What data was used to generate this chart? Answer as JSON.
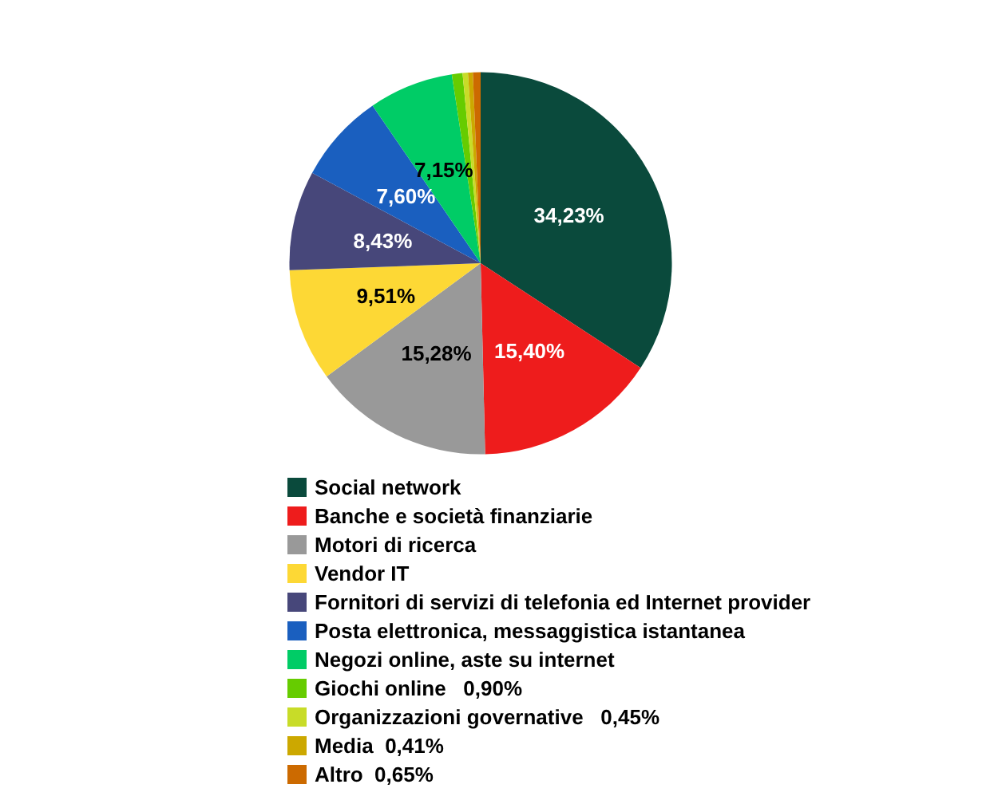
{
  "chart_data": {
    "type": "pie",
    "categories": [
      "Social network",
      "Banche e società finanziarie",
      "Motori di ricerca",
      "Vendor IT",
      "Fornitori di servizi di telefonia ed Internet provider",
      "Posta elettronica, messaggistica istantanea",
      "Negozi online, aste su internet",
      "Giochi online   0,90%",
      "Organizzazioni governative   0,45%",
      "Media  0,41%",
      "Altro  0,65%"
    ],
    "values": [
      34.23,
      15.4,
      15.28,
      9.51,
      8.43,
      7.6,
      7.15,
      0.9,
      0.45,
      0.41,
      0.65
    ],
    "value_labels": [
      "34,23%",
      "15,40%",
      "15,28%",
      "9,51%",
      "8,43%",
      "7,60%",
      "7,15%",
      null,
      null,
      null,
      null
    ],
    "colors": [
      "#0a4a3c",
      "#ee1c1c",
      "#999999",
      "#fdd835",
      "#47477a",
      "#1a5fbf",
      "#00cc66",
      "#66cc00",
      "#c8dc28",
      "#cca800",
      "#cc6a00"
    ],
    "legend": "bottom"
  }
}
